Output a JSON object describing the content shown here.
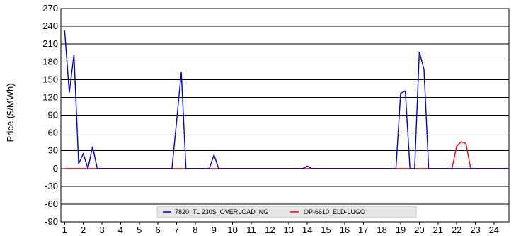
{
  "chart_data": {
    "type": "line",
    "title": "",
    "xlabel": "",
    "ylabel": "Price ($/MWh)",
    "ylim": [
      -90,
      270
    ],
    "xlim": [
      0.8,
      24.8
    ],
    "yticks": [
      270,
      240,
      210,
      180,
      150,
      120,
      90,
      60,
      30,
      0,
      -30,
      -60,
      -90
    ],
    "xticks": [
      1,
      2,
      3,
      4,
      5,
      6,
      7,
      8,
      9,
      10,
      11,
      12,
      13,
      14,
      15,
      16,
      17,
      18,
      19,
      20,
      21,
      22,
      23,
      24
    ],
    "grid": "horizontal",
    "legend_position": "bottom",
    "series": [
      {
        "name": "7820_TL 230S_OVERLOAD_NG",
        "color": "#0000cc",
        "points": [
          [
            1.0,
            233
          ],
          [
            1.25,
            128
          ],
          [
            1.5,
            192
          ],
          [
            1.75,
            8
          ],
          [
            2.0,
            25
          ],
          [
            2.25,
            0
          ],
          [
            2.5,
            37
          ],
          [
            2.75,
            0
          ],
          [
            3.0,
            0
          ],
          [
            6.75,
            0
          ],
          [
            7.0,
            80
          ],
          [
            7.25,
            163
          ],
          [
            7.5,
            0
          ],
          [
            8.75,
            0
          ],
          [
            9.0,
            23
          ],
          [
            9.25,
            0
          ],
          [
            13.75,
            0
          ],
          [
            14.0,
            4
          ],
          [
            14.25,
            0
          ],
          [
            18.75,
            0
          ],
          [
            19.0,
            127
          ],
          [
            19.25,
            131
          ],
          [
            19.5,
            0
          ],
          [
            19.75,
            0
          ],
          [
            20.0,
            197
          ],
          [
            20.25,
            167
          ],
          [
            20.5,
            0
          ],
          [
            24.75,
            0
          ]
        ]
      },
      {
        "name": "OP-6610_ELD-LUGO",
        "color": "#ff0000",
        "points": [
          [
            1.0,
            0
          ],
          [
            21.75,
            0
          ],
          [
            22.0,
            38
          ],
          [
            22.25,
            45
          ],
          [
            22.5,
            42
          ],
          [
            22.75,
            0
          ],
          [
            24.75,
            0
          ]
        ]
      }
    ]
  }
}
